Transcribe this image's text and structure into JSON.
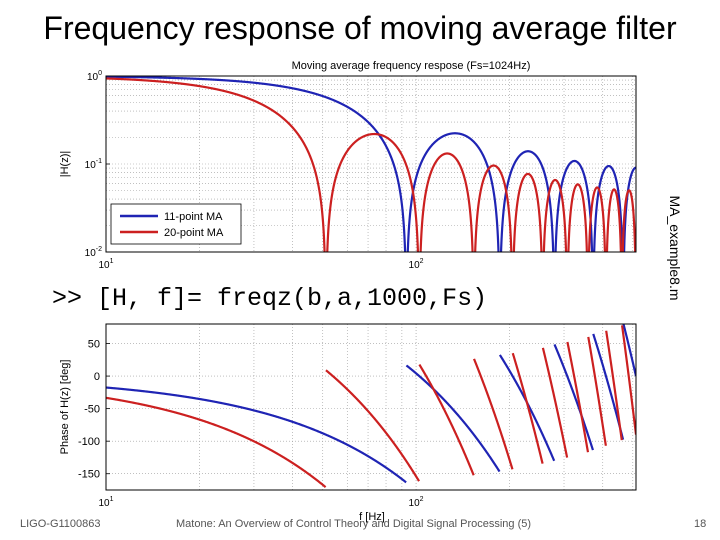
{
  "slide": {
    "title": "Frequency response of moving average filter",
    "command": ">> [H, f]= freqz(b,a,1000,Fs)",
    "side_label": "MA_example8.m",
    "footer_left": "LIGO-G1100863",
    "footer_center": "Matone: An Overview of Control Theory and Digital Signal Processing (5)",
    "page_number": "18"
  },
  "chart_data": [
    {
      "type": "line",
      "title": "Moving average frequency respose (Fs=1024Hz)",
      "ylabel": "|H(z)|",
      "xlabel": "",
      "xscale": "log",
      "yscale": "log",
      "xlim": [
        10,
        512
      ],
      "ylim": [
        0.01,
        1
      ],
      "xticks": [
        {
          "value": 10,
          "base": "10",
          "exp": "1"
        },
        {
          "value": 100,
          "base": "10",
          "exp": "2"
        }
      ],
      "yticks": [
        {
          "value": 1,
          "base": "10",
          "exp": "0"
        },
        {
          "value": 0.1,
          "base": "10",
          "exp": "-1"
        },
        {
          "value": 0.01,
          "base": "10",
          "exp": "-2"
        }
      ],
      "grid": true,
      "legend_position": "bottom-left",
      "series": [
        {
          "name": "11-point MA",
          "N": 11,
          "color": "#1f24b4"
        },
        {
          "name": "20-point MA",
          "N": 20,
          "color": "#cc2020"
        }
      ]
    },
    {
      "type": "line",
      "title": "",
      "ylabel": "Phase of H(z) [deg]",
      "xlabel": "f [Hz]",
      "xscale": "log",
      "xlim": [
        10,
        512
      ],
      "ylim": [
        -175,
        80
      ],
      "xticks": [
        {
          "value": 10,
          "base": "10",
          "exp": "1"
        },
        {
          "value": 100,
          "base": "10",
          "exp": "2"
        }
      ],
      "yticks": [
        {
          "value": 50,
          "label": "50"
        },
        {
          "value": 0,
          "label": "0"
        },
        {
          "value": -50,
          "label": "-50"
        },
        {
          "value": -100,
          "label": "-100"
        },
        {
          "value": -150,
          "label": "-150"
        }
      ],
      "grid": true,
      "series": [
        {
          "name": "11-point MA",
          "N": 11,
          "color": "#1f24b4"
        },
        {
          "name": "20-point MA",
          "N": 20,
          "color": "#cc2020"
        }
      ]
    }
  ],
  "colors": {
    "axis": "#000000",
    "grid": "#9a9a9a"
  }
}
